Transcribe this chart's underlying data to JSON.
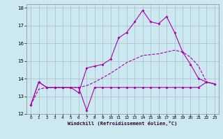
{
  "xlabel": "Windchill (Refroidissement éolien,°C)",
  "background_color": "#cce8f0",
  "line_color": "#aa00aa",
  "grid_color": "#aabbcc",
  "xlim": [
    -0.5,
    23.5
  ],
  "ylim": [
    12,
    18.2
  ],
  "xticks": [
    0,
    1,
    2,
    3,
    4,
    5,
    6,
    7,
    8,
    9,
    10,
    11,
    12,
    13,
    14,
    15,
    16,
    17,
    18,
    19,
    20,
    21,
    22,
    23
  ],
  "yticks": [
    12,
    13,
    14,
    15,
    16,
    17,
    18
  ],
  "line1_x": [
    0,
    1,
    2,
    3,
    4,
    5,
    6,
    7,
    8,
    9,
    10,
    11,
    12,
    13,
    14,
    15,
    16,
    17,
    18,
    19,
    20,
    21,
    22,
    23
  ],
  "line1_y": [
    12.5,
    13.8,
    13.5,
    13.5,
    13.5,
    13.5,
    13.5,
    12.2,
    13.5,
    13.5,
    13.5,
    13.5,
    13.5,
    13.5,
    13.5,
    13.5,
    13.5,
    13.5,
    13.5,
    13.5,
    13.5,
    13.5,
    13.8,
    13.7
  ],
  "line2_x": [
    0,
    1,
    2,
    3,
    4,
    5,
    6,
    7,
    8,
    9,
    10,
    11,
    12,
    13,
    14,
    15,
    16,
    17,
    18,
    19,
    20,
    21,
    22,
    23
  ],
  "line2_y": [
    12.5,
    13.8,
    13.5,
    13.5,
    13.5,
    13.5,
    13.2,
    14.6,
    14.7,
    14.8,
    15.1,
    16.3,
    16.6,
    17.2,
    17.85,
    17.2,
    17.1,
    17.5,
    16.6,
    15.5,
    14.8,
    14.0,
    13.8,
    13.7
  ],
  "line3_x": [
    0,
    1,
    2,
    3,
    4,
    5,
    6,
    7,
    8,
    9,
    10,
    11,
    12,
    13,
    14,
    15,
    16,
    17,
    18,
    19,
    20,
    21,
    22,
    23
  ],
  "line3_y": [
    12.5,
    13.4,
    13.5,
    13.5,
    13.5,
    13.5,
    13.5,
    13.6,
    13.8,
    14.05,
    14.3,
    14.6,
    14.9,
    15.1,
    15.3,
    15.35,
    15.4,
    15.5,
    15.6,
    15.5,
    15.2,
    14.7,
    13.8,
    13.7
  ]
}
